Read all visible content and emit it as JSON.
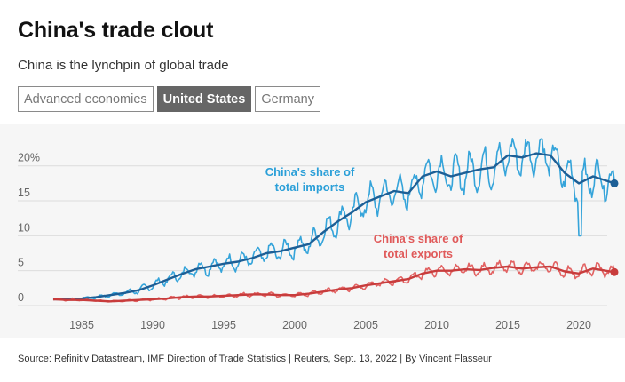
{
  "title": "China's trade clout",
  "subtitle": "China is the lynchpin of global trade",
  "tabs": [
    {
      "label": "Advanced economies",
      "active": false
    },
    {
      "label": "United States",
      "active": true
    },
    {
      "label": "Germany",
      "active": false
    }
  ],
  "source": "Source: Refinitiv Datastream, IMF Direction of Trade Statistics | Reuters, Sept. 13, 2022 | By Vincent Flasseur",
  "colors": {
    "imports": "#2a9fd8",
    "imports_trend": "#1d5f96",
    "exports": "#e05a5a",
    "exports_trend": "#c83c3c",
    "grid": "#dcdcdc",
    "background": "#f6f6f6"
  },
  "chart_data": {
    "type": "line",
    "title": "",
    "xlabel": "",
    "ylabel": "",
    "xlim": [
      1982,
      2023
    ],
    "ylim": [
      0,
      22
    ],
    "y_ticks": [
      {
        "value": 0,
        "label": "0"
      },
      {
        "value": 5,
        "label": "5"
      },
      {
        "value": 10,
        "label": "10"
      },
      {
        "value": 15,
        "label": "15"
      },
      {
        "value": 20,
        "label": "20%"
      }
    ],
    "x_ticks": [
      {
        "value": 1985,
        "label": "1985"
      },
      {
        "value": 1990,
        "label": "1990"
      },
      {
        "value": 1995,
        "label": "1995"
      },
      {
        "value": 2000,
        "label": "2000"
      },
      {
        "value": 2005,
        "label": "2005"
      },
      {
        "value": 2010,
        "label": "2010"
      },
      {
        "value": 2015,
        "label": "2015"
      },
      {
        "value": 2020,
        "label": "2020"
      }
    ],
    "grid": true,
    "series": [
      {
        "name": "China's share of total imports",
        "label_lines": [
          "China's share of",
          "total imports"
        ],
        "x": [
          1983,
          1984,
          1985,
          1986,
          1987,
          1988,
          1989,
          1990,
          1991,
          1992,
          1993,
          1994,
          1995,
          1996,
          1997,
          1998,
          1999,
          2000,
          2001,
          2002,
          2003,
          2004,
          2005,
          2006,
          2007,
          2008,
          2009,
          2010,
          2011,
          2012,
          2013,
          2014,
          2015,
          2016,
          2017,
          2018,
          2019,
          2020,
          2021,
          2022.5
        ],
        "trend": [
          0.9,
          0.9,
          1.0,
          1.2,
          1.5,
          1.8,
          2.2,
          2.9,
          3.7,
          4.5,
          5.2,
          5.6,
          6.0,
          6.3,
          6.8,
          7.5,
          7.8,
          8.3,
          8.8,
          10.5,
          12.0,
          13.3,
          14.8,
          15.6,
          16.4,
          16.1,
          18.5,
          19.2,
          18.5,
          19.0,
          19.5,
          19.8,
          21.5,
          21.2,
          21.8,
          21.5,
          19.0,
          17.5,
          18.5,
          17.5
        ],
        "amplitude": [
          0.1,
          0.1,
          0.15,
          0.2,
          0.25,
          0.3,
          0.4,
          0.5,
          0.6,
          0.8,
          0.9,
          1.0,
          1.0,
          1.0,
          1.1,
          1.2,
          1.2,
          1.3,
          1.3,
          1.5,
          1.7,
          1.8,
          2.0,
          2.0,
          2.0,
          2.0,
          2.3,
          2.3,
          2.3,
          2.4,
          2.4,
          2.4,
          2.3,
          2.3,
          2.3,
          2.3,
          2.3,
          2.5,
          2.3,
          2.0
        ]
      },
      {
        "name": "China's share of total exports",
        "label_lines": [
          "China's share of",
          "total exports"
        ],
        "x": [
          1983,
          1984,
          1985,
          1986,
          1987,
          1988,
          1989,
          1990,
          1991,
          1992,
          1993,
          1994,
          1995,
          1996,
          1997,
          1998,
          1999,
          2000,
          2001,
          2002,
          2003,
          2004,
          2005,
          2006,
          2007,
          2008,
          2009,
          2010,
          2011,
          2012,
          2013,
          2014,
          2015,
          2016,
          2017,
          2018,
          2019,
          2020,
          2021,
          2022.5
        ],
        "trend": [
          0.9,
          0.8,
          0.8,
          0.7,
          0.6,
          0.7,
          0.8,
          0.9,
          1.0,
          1.2,
          1.3,
          1.3,
          1.4,
          1.5,
          1.6,
          1.6,
          1.5,
          1.5,
          1.7,
          2.0,
          2.3,
          2.5,
          2.9,
          3.2,
          3.5,
          3.8,
          4.6,
          5.0,
          5.0,
          5.2,
          5.1,
          5.4,
          5.6,
          5.3,
          5.5,
          5.6,
          4.9,
          4.6,
          5.3,
          4.8
        ],
        "amplitude": [
          0.1,
          0.1,
          0.1,
          0.1,
          0.1,
          0.1,
          0.15,
          0.15,
          0.2,
          0.2,
          0.2,
          0.2,
          0.25,
          0.25,
          0.25,
          0.25,
          0.25,
          0.25,
          0.3,
          0.3,
          0.3,
          0.35,
          0.4,
          0.4,
          0.45,
          0.5,
          0.6,
          0.6,
          0.6,
          0.7,
          0.7,
          0.7,
          0.7,
          0.7,
          0.7,
          0.7,
          0.7,
          0.8,
          0.8,
          0.7
        ]
      }
    ]
  }
}
